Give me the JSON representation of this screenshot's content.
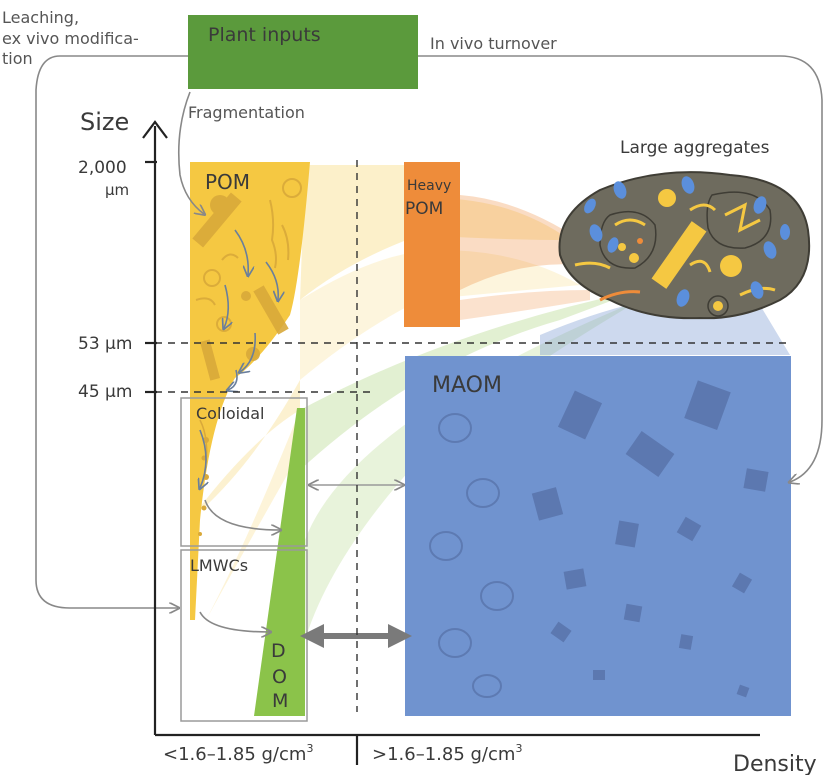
{
  "labels": {
    "leaching_1": "Leaching,",
    "leaching_2": "ex vivo modifica-",
    "leaching_3": "tion",
    "plant_inputs": "Plant inputs",
    "in_vivo": "In vivo turnover",
    "fragmentation": "Fragmentation",
    "size_axis": "Size",
    "tick_2000_1": "2,000",
    "tick_2000_2": "µm",
    "tick_53": "53 µm",
    "tick_45": "45 µm",
    "pom": "POM",
    "heavy": "Heavy",
    "heavy_pom": "POM",
    "large_aggregates": "Large aggregates",
    "maom": "MAOM",
    "colloidal": "Colloidal",
    "lmwcs": "LMWCs",
    "dom_d": "D",
    "dom_o": "O",
    "dom_m": "M",
    "density_low_pre": "<1.6–1.85 g/cm",
    "density_high_pre": ">1.6–1.85 g/cm",
    "density_sup": "3",
    "density_axis": "Density"
  },
  "colors": {
    "plant_inputs": "#5b9a3c",
    "pom": "#f5c842",
    "heavy_pom": "#ee8c3a",
    "maom": "#7093cf",
    "dom": "#8bc34a",
    "aggregate": "#6e6b5e"
  }
}
